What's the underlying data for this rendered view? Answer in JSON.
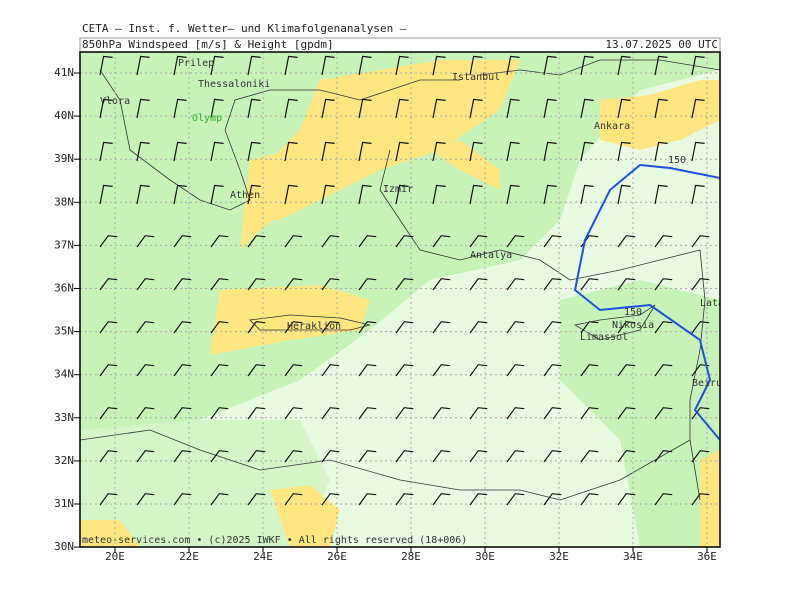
{
  "header": {
    "institute": "CETA – Inst. f. Wetter– und Klimafolgenanalysen –",
    "product": "850hPa Windspeed [m/s] & Height [gpdm]",
    "valid": "13.07.2025 00 UTC"
  },
  "lat_labels": [
    "41N",
    "40N",
    "39N",
    "38N",
    "37N",
    "36N",
    "35N",
    "34N",
    "33N",
    "32N",
    "31N",
    "30N"
  ],
  "lon_labels": [
    "20E",
    "22E",
    "24E",
    "26E",
    "28E",
    "30E",
    "32E",
    "34E",
    "36E"
  ],
  "cities": [
    "Prilep",
    "Thessaloniki",
    "Vlora",
    "Olymp",
    "Athen",
    "Izmir",
    "Istanbul",
    "Ankara",
    "Antalya",
    "Heraklion",
    "Nikosia",
    "Limassol",
    "Latakia",
    "Beirut"
  ],
  "contour_labels": [
    "150",
    "150"
  ],
  "footer": "meteo-services.com • (c)2025 IWKF • All rights reserved (18+006)"
}
